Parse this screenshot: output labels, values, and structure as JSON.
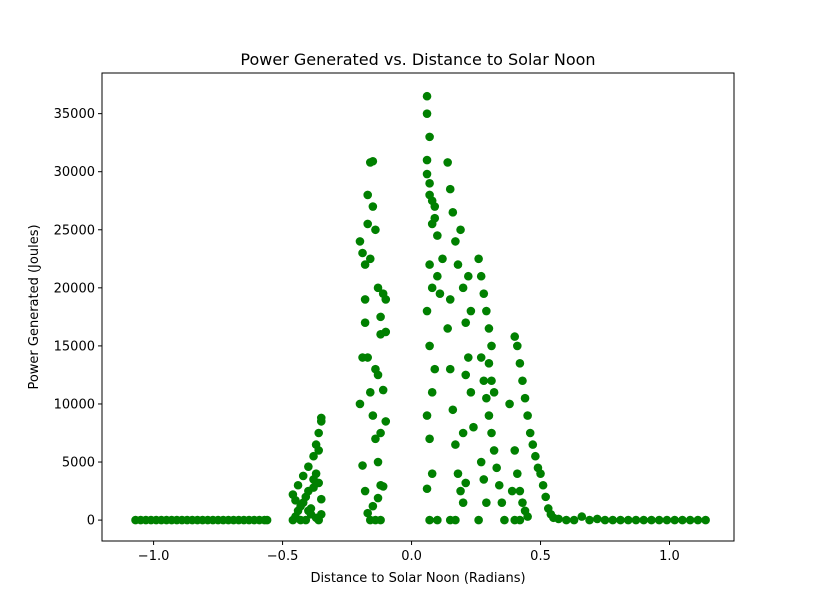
{
  "chart_data": {
    "type": "scatter",
    "title": "Power Generated vs. Distance to Solar Noon",
    "xlabel": "Distance to Solar Noon (Radians)",
    "ylabel": "Power Generated (Joules)",
    "xlim": [
      -1.2,
      1.25
    ],
    "ylim": [
      -1800,
      38500
    ],
    "x_ticks": [
      -1.0,
      -0.5,
      0.0,
      0.5,
      1.0
    ],
    "x_tick_labels": [
      "−1.0",
      "−0.5",
      "0.0",
      "0.5",
      "1.0"
    ],
    "y_ticks": [
      0,
      5000,
      10000,
      15000,
      20000,
      25000,
      30000,
      35000
    ],
    "y_tick_labels": [
      "0",
      "5000",
      "10000",
      "15000",
      "20000",
      "25000",
      "30000",
      "35000"
    ],
    "grid": false,
    "legend": "none",
    "marker_color": "#008000",
    "series": [
      {
        "points": [
          [
            -1.07,
            0
          ],
          [
            -1.05,
            0
          ],
          [
            -1.03,
            0
          ],
          [
            -1.01,
            0
          ],
          [
            -0.99,
            0
          ],
          [
            -0.97,
            0
          ],
          [
            -0.95,
            0
          ],
          [
            -0.93,
            0
          ],
          [
            -0.91,
            0
          ],
          [
            -0.89,
            0
          ],
          [
            -0.87,
            0
          ],
          [
            -0.85,
            0
          ],
          [
            -0.83,
            0
          ],
          [
            -0.81,
            0
          ],
          [
            -0.79,
            0
          ],
          [
            -0.77,
            0
          ],
          [
            -0.75,
            0
          ],
          [
            -0.73,
            0
          ],
          [
            -0.71,
            0
          ],
          [
            -0.69,
            0
          ],
          [
            -0.67,
            0
          ],
          [
            -0.65,
            0
          ],
          [
            -0.63,
            0
          ],
          [
            -0.61,
            0
          ],
          [
            -0.59,
            0
          ],
          [
            -0.57,
            0
          ],
          [
            -0.56,
            0
          ],
          [
            -0.46,
            0
          ],
          [
            -0.45,
            300
          ],
          [
            -0.44,
            800
          ],
          [
            -0.43,
            0
          ],
          [
            -0.42,
            1500
          ],
          [
            -0.41,
            0
          ],
          [
            -0.4,
            2500
          ],
          [
            -0.39,
            500
          ],
          [
            -0.38,
            3500
          ],
          [
            -0.37,
            200
          ],
          [
            -0.36,
            0
          ],
          [
            -0.46,
            2200
          ],
          [
            -0.44,
            3000
          ],
          [
            -0.42,
            3800
          ],
          [
            -0.4,
            4600
          ],
          [
            -0.38,
            5500
          ],
          [
            -0.37,
            6500
          ],
          [
            -0.36,
            7500
          ],
          [
            -0.35,
            8500
          ],
          [
            -0.35,
            8800
          ],
          [
            -0.36,
            6000
          ],
          [
            -0.37,
            4000
          ],
          [
            -0.43,
            1200
          ],
          [
            -0.41,
            2000
          ],
          [
            -0.39,
            1000
          ],
          [
            -0.38,
            2800
          ],
          [
            -0.36,
            3200
          ],
          [
            -0.35,
            1800
          ],
          [
            -0.35,
            500
          ],
          [
            -0.45,
            1700
          ],
          [
            -0.4,
            800
          ],
          [
            -0.2,
            24000
          ],
          [
            -0.19,
            23000
          ],
          [
            -0.18,
            22000
          ],
          [
            -0.17,
            28000
          ],
          [
            -0.16,
            30800
          ],
          [
            -0.15,
            30900
          ],
          [
            -0.15,
            27000
          ],
          [
            -0.14,
            25000
          ],
          [
            -0.13,
            20000
          ],
          [
            -0.12,
            16000
          ],
          [
            -0.18,
            17000
          ],
          [
            -0.17,
            14000
          ],
          [
            -0.16,
            11000
          ],
          [
            -0.15,
            9000
          ],
          [
            -0.14,
            7000
          ],
          [
            -0.13,
            5000
          ],
          [
            -0.12,
            3000
          ],
          [
            -0.19,
            14000
          ],
          [
            -0.2,
            10000
          ],
          [
            -0.19,
            4700
          ],
          [
            -0.18,
            2500
          ],
          [
            -0.17,
            600
          ],
          [
            -0.16,
            0
          ],
          [
            -0.15,
            1200
          ],
          [
            -0.14,
            13000
          ],
          [
            -0.13,
            12500
          ],
          [
            -0.12,
            17500
          ],
          [
            -0.11,
            19500
          ],
          [
            -0.1,
            19000
          ],
          [
            -0.1,
            16200
          ],
          [
            -0.11,
            11200
          ],
          [
            -0.12,
            7500
          ],
          [
            -0.1,
            8500
          ],
          [
            -0.11,
            2900
          ],
          [
            -0.13,
            1900
          ],
          [
            -0.16,
            22500
          ],
          [
            -0.17,
            25500
          ],
          [
            -0.18,
            19000
          ],
          [
            -0.14,
            0
          ],
          [
            -0.12,
            0
          ],
          [
            0.06,
            36500
          ],
          [
            0.06,
            35000
          ],
          [
            0.07,
            33000
          ],
          [
            0.06,
            31000
          ],
          [
            0.07,
            29000
          ],
          [
            0.08,
            27500
          ],
          [
            0.09,
            26000
          ],
          [
            0.1,
            24500
          ],
          [
            0.06,
            29800
          ],
          [
            0.07,
            28000
          ],
          [
            0.08,
            25500
          ],
          [
            0.09,
            27000
          ],
          [
            0.07,
            22000
          ],
          [
            0.08,
            20000
          ],
          [
            0.06,
            18000
          ],
          [
            0.07,
            15000
          ],
          [
            0.08,
            11000
          ],
          [
            0.06,
            9000
          ],
          [
            0.07,
            7000
          ],
          [
            0.08,
            4000
          ],
          [
            0.06,
            2700
          ],
          [
            0.07,
            0
          ],
          [
            0.1,
            0
          ],
          [
            0.09,
            13000
          ],
          [
            0.1,
            21000
          ],
          [
            0.11,
            19500
          ],
          [
            0.12,
            22500
          ],
          [
            0.14,
            30800
          ],
          [
            0.15,
            28500
          ],
          [
            0.16,
            26500
          ],
          [
            0.17,
            24000
          ],
          [
            0.18,
            22000
          ],
          [
            0.19,
            25000
          ],
          [
            0.2,
            20000
          ],
          [
            0.21,
            17000
          ],
          [
            0.22,
            14000
          ],
          [
            0.23,
            11000
          ],
          [
            0.24,
            8000
          ],
          [
            0.15,
            13000
          ],
          [
            0.16,
            9500
          ],
          [
            0.17,
            6500
          ],
          [
            0.18,
            4000
          ],
          [
            0.19,
            2500
          ],
          [
            0.2,
            1500
          ],
          [
            0.15,
            0
          ],
          [
            0.17,
            0
          ],
          [
            0.21,
            3200
          ],
          [
            0.2,
            7500
          ],
          [
            0.14,
            16500
          ],
          [
            0.15,
            19000
          ],
          [
            0.22,
            21000
          ],
          [
            0.23,
            18000
          ],
          [
            0.21,
            12500
          ],
          [
            0.26,
            22500
          ],
          [
            0.27,
            21000
          ],
          [
            0.28,
            19500
          ],
          [
            0.29,
            18000
          ],
          [
            0.3,
            16500
          ],
          [
            0.31,
            15000
          ],
          [
            0.27,
            14000
          ],
          [
            0.28,
            12000
          ],
          [
            0.29,
            10500
          ],
          [
            0.3,
            9000
          ],
          [
            0.31,
            7500
          ],
          [
            0.32,
            6000
          ],
          [
            0.33,
            4500
          ],
          [
            0.34,
            3000
          ],
          [
            0.35,
            1500
          ],
          [
            0.36,
            0
          ],
          [
            0.27,
            5000
          ],
          [
            0.28,
            3500
          ],
          [
            0.29,
            1500
          ],
          [
            0.26,
            0
          ],
          [
            0.3,
            13500
          ],
          [
            0.31,
            12000
          ],
          [
            0.32,
            11000
          ],
          [
            0.4,
            15800
          ],
          [
            0.41,
            15000
          ],
          [
            0.42,
            13500
          ],
          [
            0.43,
            12000
          ],
          [
            0.44,
            10500
          ],
          [
            0.45,
            9000
          ],
          [
            0.46,
            7500
          ],
          [
            0.47,
            6500
          ],
          [
            0.48,
            5500
          ],
          [
            0.49,
            4500
          ],
          [
            0.5,
            4000
          ],
          [
            0.51,
            3000
          ],
          [
            0.52,
            2000
          ],
          [
            0.53,
            1000
          ],
          [
            0.54,
            500
          ],
          [
            0.4,
            6000
          ],
          [
            0.41,
            4000
          ],
          [
            0.42,
            2500
          ],
          [
            0.43,
            1500
          ],
          [
            0.44,
            800
          ],
          [
            0.45,
            300
          ],
          [
            0.38,
            10000
          ],
          [
            0.39,
            2500
          ],
          [
            0.4,
            0
          ],
          [
            0.42,
            0
          ],
          [
            0.55,
            200
          ],
          [
            0.57,
            100
          ],
          [
            0.6,
            0
          ],
          [
            0.63,
            0
          ],
          [
            0.66,
            300
          ],
          [
            0.69,
            0
          ],
          [
            0.72,
            100
          ],
          [
            0.75,
            0
          ],
          [
            0.78,
            0
          ],
          [
            0.81,
            0
          ],
          [
            0.84,
            0
          ],
          [
            0.87,
            0
          ],
          [
            0.9,
            0
          ],
          [
            0.93,
            0
          ],
          [
            0.96,
            0
          ],
          [
            0.99,
            0
          ],
          [
            1.02,
            0
          ],
          [
            1.05,
            0
          ],
          [
            1.08,
            0
          ],
          [
            1.11,
            0
          ],
          [
            1.14,
            0
          ]
        ]
      }
    ]
  }
}
